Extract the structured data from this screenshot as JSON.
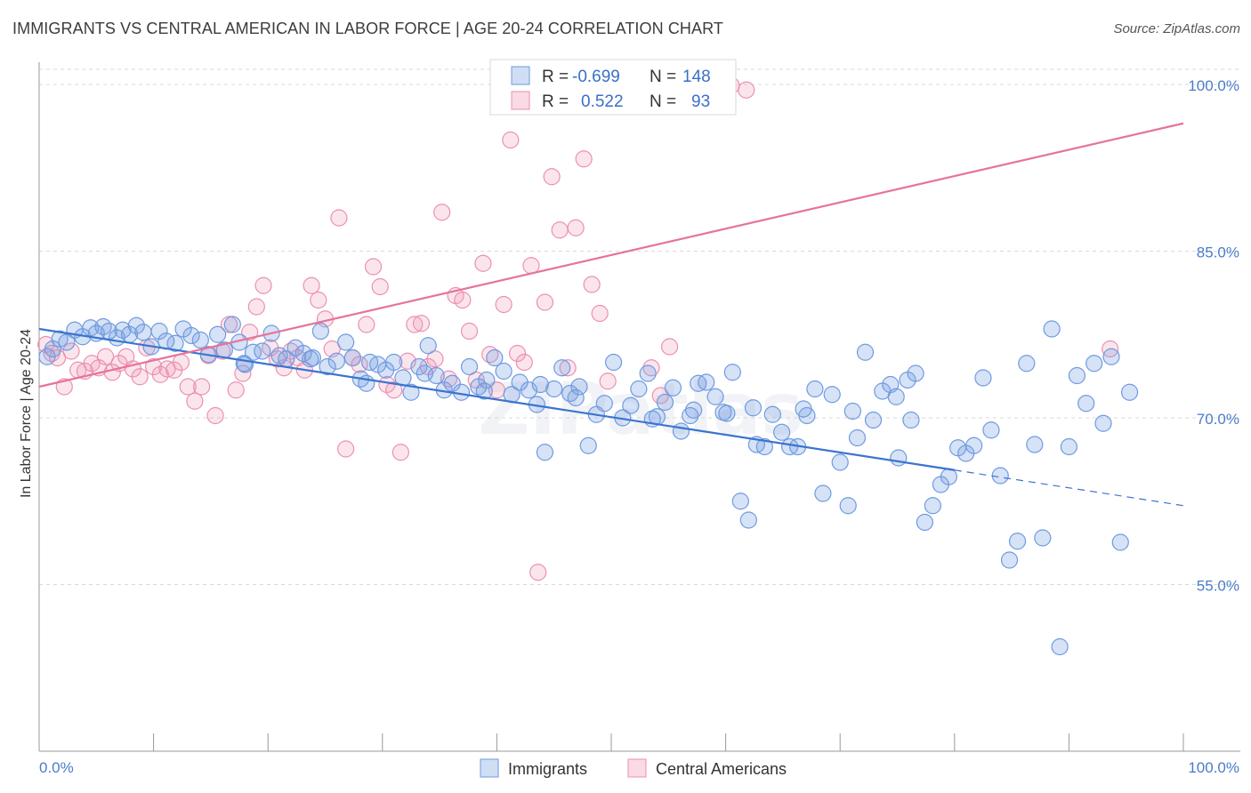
{
  "title": "IMMIGRANTS VS CENTRAL AMERICAN IN LABOR FORCE | AGE 20-24 CORRELATION CHART",
  "source": "Source: ZipAtlas.com",
  "watermark": "ZIPatlas",
  "colors": {
    "blue": "#3a74d0",
    "pink": "#e6739b",
    "axis_text": "#4a7cc9"
  },
  "legend": {
    "rows": [
      {
        "r_label": "R =",
        "r_value": "-0.699",
        "n_label": "N =",
        "n_value": "148",
        "color": "#6e9ae0"
      },
      {
        "r_label": "R =",
        "r_value": "0.522",
        "n_label": "N =",
        "n_value": "93",
        "color": "#ec8fb0"
      }
    ]
  },
  "bottom_legend": [
    {
      "label": "Immigrants",
      "color": "#6e9ae0"
    },
    {
      "label": "Central Americans",
      "color": "#ec8fb0"
    }
  ],
  "chart_data": {
    "type": "scatter",
    "title": "IMMIGRANTS VS CENTRAL AMERICAN IN LABOR FORCE | AGE 20-24 CORRELATION CHART",
    "xlabel": "",
    "ylabel": "In Labor Force | Age 20-24",
    "xlim": [
      0,
      100
    ],
    "ylim": [
      40,
      102
    ],
    "x_tick_labels": [
      "0.0%",
      "100.0%"
    ],
    "y_ticks": [
      55,
      70,
      85,
      100
    ],
    "y_tick_labels": [
      "55.0%",
      "70.0%",
      "85.0%",
      "100.0%"
    ],
    "grid": true,
    "legend_position": "top-center",
    "series": [
      {
        "name": "Immigrants",
        "color": "#6e9ae0",
        "r": -0.699,
        "n": 148,
        "trend": {
          "x": [
            0,
            80
          ],
          "y": [
            78.0,
            65.3
          ],
          "dashed_to": [
            100,
            62.1
          ]
        },
        "points": [
          [
            0.7,
            75.5
          ],
          [
            1.2,
            76.2
          ],
          [
            1.8,
            77.1
          ],
          [
            2.4,
            76.8
          ],
          [
            3.1,
            77.9
          ],
          [
            3.8,
            77.3
          ],
          [
            4.5,
            78.1
          ],
          [
            5.0,
            77.6
          ],
          [
            5.6,
            78.2
          ],
          [
            6.1,
            77.8
          ],
          [
            6.8,
            77.2
          ],
          [
            7.3,
            77.9
          ],
          [
            7.9,
            77.5
          ],
          [
            8.5,
            78.3
          ],
          [
            9.1,
            77.7
          ],
          [
            9.8,
            76.4
          ],
          [
            10.5,
            77.8
          ],
          [
            11.1,
            76.9
          ],
          [
            11.9,
            76.7
          ],
          [
            12.6,
            78.0
          ],
          [
            13.3,
            77.4
          ],
          [
            14.1,
            77.0
          ],
          [
            14.8,
            75.7
          ],
          [
            15.6,
            77.5
          ],
          [
            16.2,
            76.1
          ],
          [
            16.9,
            78.4
          ],
          [
            17.5,
            76.8
          ],
          [
            18.0,
            74.8
          ],
          [
            18.7,
            75.9
          ],
          [
            19.5,
            76.0
          ],
          [
            20.3,
            77.6
          ],
          [
            21.0,
            75.6
          ],
          [
            21.6,
            75.3
          ],
          [
            22.4,
            76.3
          ],
          [
            23.1,
            75.8
          ],
          [
            23.9,
            75.4
          ],
          [
            24.6,
            77.8
          ],
          [
            25.2,
            74.6
          ],
          [
            26.0,
            75.1
          ],
          [
            26.8,
            76.8
          ],
          [
            27.4,
            75.4
          ],
          [
            28.1,
            73.5
          ],
          [
            28.9,
            75.0
          ],
          [
            29.6,
            74.8
          ],
          [
            30.3,
            74.3
          ],
          [
            31.0,
            75.0
          ],
          [
            31.8,
            73.6
          ],
          [
            32.5,
            72.3
          ],
          [
            33.2,
            74.6
          ],
          [
            34.0,
            76.5
          ],
          [
            34.7,
            73.8
          ],
          [
            35.4,
            72.5
          ],
          [
            36.1,
            73.1
          ],
          [
            36.9,
            72.3
          ],
          [
            37.6,
            74.6
          ],
          [
            38.4,
            72.8
          ],
          [
            39.1,
            73.4
          ],
          [
            39.8,
            75.4
          ],
          [
            40.6,
            74.2
          ],
          [
            41.3,
            72.1
          ],
          [
            42.0,
            73.2
          ],
          [
            42.8,
            72.5
          ],
          [
            43.5,
            71.2
          ],
          [
            44.2,
            66.9
          ],
          [
            45.0,
            72.6
          ],
          [
            45.7,
            74.5
          ],
          [
            46.4,
            72.2
          ],
          [
            47.2,
            72.8
          ],
          [
            48.0,
            67.5
          ],
          [
            48.7,
            70.3
          ],
          [
            49.4,
            71.3
          ],
          [
            50.2,
            75.0
          ],
          [
            51.0,
            70.0
          ],
          [
            51.7,
            71.1
          ],
          [
            52.4,
            72.6
          ],
          [
            53.2,
            74.0
          ],
          [
            54.0,
            70.1
          ],
          [
            54.7,
            71.4
          ],
          [
            55.4,
            72.7
          ],
          [
            56.1,
            68.8
          ],
          [
            56.9,
            70.2
          ],
          [
            57.6,
            73.1
          ],
          [
            58.3,
            73.2
          ],
          [
            59.1,
            71.9
          ],
          [
            59.8,
            70.5
          ],
          [
            60.6,
            74.1
          ],
          [
            61.3,
            62.5
          ],
          [
            62.0,
            60.8
          ],
          [
            62.7,
            67.6
          ],
          [
            63.4,
            67.4
          ],
          [
            64.1,
            70.3
          ],
          [
            64.9,
            68.7
          ],
          [
            65.6,
            67.4
          ],
          [
            66.3,
            67.4
          ],
          [
            67.1,
            70.2
          ],
          [
            67.8,
            72.6
          ],
          [
            68.5,
            63.2
          ],
          [
            69.3,
            72.1
          ],
          [
            70.0,
            66.0
          ],
          [
            70.7,
            62.1
          ],
          [
            71.5,
            68.2
          ],
          [
            72.2,
            75.9
          ],
          [
            72.9,
            69.8
          ],
          [
            73.7,
            72.4
          ],
          [
            74.4,
            73.0
          ],
          [
            75.1,
            66.4
          ],
          [
            75.9,
            73.4
          ],
          [
            76.6,
            74.0
          ],
          [
            77.4,
            60.6
          ],
          [
            78.1,
            62.1
          ],
          [
            78.8,
            64.0
          ],
          [
            79.5,
            64.7
          ],
          [
            80.3,
            67.3
          ],
          [
            81.0,
            66.8
          ],
          [
            81.7,
            67.5
          ],
          [
            82.5,
            73.6
          ],
          [
            83.2,
            68.9
          ],
          [
            84.0,
            64.8
          ],
          [
            84.8,
            57.2
          ],
          [
            85.5,
            58.9
          ],
          [
            86.3,
            74.9
          ],
          [
            87.0,
            67.6
          ],
          [
            87.7,
            59.2
          ],
          [
            88.5,
            78.0
          ],
          [
            89.2,
            49.4
          ],
          [
            90.0,
            67.4
          ],
          [
            90.7,
            73.8
          ],
          [
            91.5,
            71.3
          ],
          [
            92.2,
            74.9
          ],
          [
            93.0,
            69.5
          ],
          [
            93.7,
            75.5
          ],
          [
            94.5,
            58.8
          ],
          [
            95.3,
            72.3
          ],
          [
            17.9,
            74.9
          ],
          [
            23.7,
            75.3
          ],
          [
            28.6,
            73.1
          ],
          [
            33.7,
            74.0
          ],
          [
            38.9,
            72.4
          ],
          [
            43.8,
            73.0
          ],
          [
            46.9,
            71.8
          ],
          [
            53.6,
            69.9
          ],
          [
            57.2,
            70.7
          ],
          [
            60.1,
            70.4
          ],
          [
            62.4,
            70.9
          ],
          [
            66.8,
            70.8
          ],
          [
            71.1,
            70.6
          ],
          [
            74.9,
            71.9
          ],
          [
            76.2,
            69.8
          ]
        ]
      },
      {
        "name": "Central Americans",
        "color": "#ec8fb0",
        "r": 0.522,
        "n": 93,
        "trend": {
          "x": [
            0,
            100
          ],
          "y": [
            72.8,
            96.5
          ]
        },
        "points": [
          [
            0.6,
            76.6
          ],
          [
            1.1,
            75.8
          ],
          [
            1.6,
            75.4
          ],
          [
            2.2,
            72.8
          ],
          [
            2.8,
            76.0
          ],
          [
            3.4,
            74.3
          ],
          [
            4.0,
            74.2
          ],
          [
            4.6,
            74.9
          ],
          [
            5.2,
            74.5
          ],
          [
            5.8,
            75.5
          ],
          [
            6.4,
            74.1
          ],
          [
            7.0,
            74.9
          ],
          [
            7.6,
            75.5
          ],
          [
            8.2,
            74.4
          ],
          [
            8.8,
            73.7
          ],
          [
            9.4,
            76.3
          ],
          [
            10.0,
            74.6
          ],
          [
            10.6,
            73.9
          ],
          [
            11.2,
            74.4
          ],
          [
            11.8,
            74.3
          ],
          [
            12.4,
            75.0
          ],
          [
            13.0,
            72.8
          ],
          [
            13.6,
            71.5
          ],
          [
            14.2,
            72.8
          ],
          [
            14.8,
            75.6
          ],
          [
            15.4,
            70.2
          ],
          [
            16.0,
            76.0
          ],
          [
            16.6,
            78.4
          ],
          [
            17.2,
            72.5
          ],
          [
            17.8,
            74.0
          ],
          [
            18.4,
            77.7
          ],
          [
            19.0,
            80.0
          ],
          [
            19.6,
            81.9
          ],
          [
            20.2,
            76.3
          ],
          [
            20.8,
            75.3
          ],
          [
            21.4,
            74.5
          ],
          [
            22.0,
            76.0
          ],
          [
            22.6,
            75.4
          ],
          [
            23.2,
            74.3
          ],
          [
            23.8,
            81.9
          ],
          [
            24.4,
            80.6
          ],
          [
            25.0,
            78.9
          ],
          [
            25.6,
            76.2
          ],
          [
            26.2,
            88.0
          ],
          [
            26.8,
            67.2
          ],
          [
            27.4,
            75.4
          ],
          [
            28.0,
            74.8
          ],
          [
            28.6,
            78.4
          ],
          [
            29.2,
            83.6
          ],
          [
            29.8,
            81.8
          ],
          [
            30.4,
            73.0
          ],
          [
            31.0,
            72.5
          ],
          [
            31.6,
            66.9
          ],
          [
            32.2,
            75.1
          ],
          [
            32.8,
            78.4
          ],
          [
            33.4,
            78.5
          ],
          [
            34.0,
            74.6
          ],
          [
            34.6,
            75.3
          ],
          [
            35.2,
            88.5
          ],
          [
            35.8,
            73.5
          ],
          [
            36.4,
            81.0
          ],
          [
            37.0,
            80.6
          ],
          [
            37.6,
            77.8
          ],
          [
            38.2,
            73.4
          ],
          [
            38.8,
            83.9
          ],
          [
            39.4,
            75.7
          ],
          [
            40.0,
            72.5
          ],
          [
            40.6,
            80.2
          ],
          [
            41.2,
            95.0
          ],
          [
            41.8,
            75.8
          ],
          [
            42.4,
            75.0
          ],
          [
            43.0,
            83.7
          ],
          [
            43.6,
            56.1
          ],
          [
            44.2,
            80.4
          ],
          [
            44.8,
            91.7
          ],
          [
            45.5,
            86.9
          ],
          [
            46.2,
            74.5
          ],
          [
            46.9,
            87.1
          ],
          [
            47.6,
            93.3
          ],
          [
            48.3,
            82.0
          ],
          [
            49.0,
            79.4
          ],
          [
            49.7,
            73.3
          ],
          [
            50.5,
            98.6
          ],
          [
            51.2,
            98.3
          ],
          [
            52.0,
            99.5
          ],
          [
            52.8,
            98.6
          ],
          [
            53.5,
            74.5
          ],
          [
            54.3,
            72.0
          ],
          [
            55.1,
            76.4
          ],
          [
            56.0,
            99.2
          ],
          [
            60.5,
            99.9
          ],
          [
            61.8,
            99.5
          ],
          [
            93.6,
            76.2
          ]
        ]
      }
    ]
  }
}
